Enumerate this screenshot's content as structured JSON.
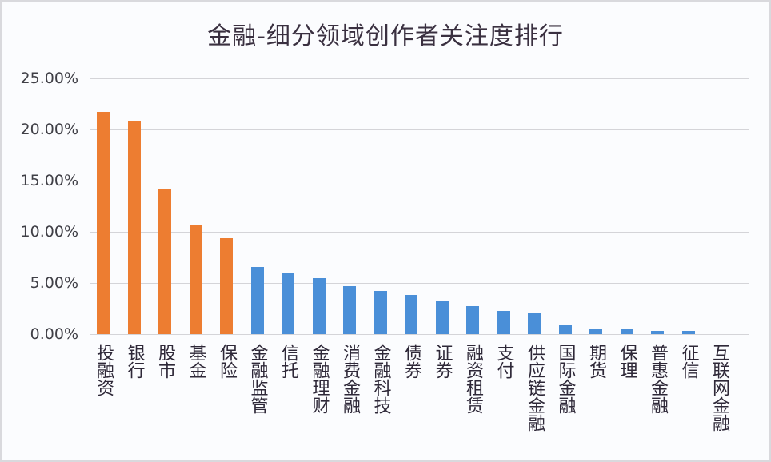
{
  "title": "金融-细分领域创作者关注度排行",
  "colors": {
    "highlight": "#ed7d31",
    "normal": "#4a8fd8",
    "grid": "#d4d4d8"
  },
  "y_axis": {
    "ticks": [
      "0.00%",
      "5.00%",
      "10.00%",
      "15.00%",
      "20.00%",
      "25.00%"
    ]
  },
  "chart_data": {
    "type": "bar",
    "title": "金融-细分领域创作者关注度排行",
    "xlabel": "",
    "ylabel": "",
    "ylim": [
      0,
      25
    ],
    "y_unit": "%",
    "grid": true,
    "legend": null,
    "categories": [
      "投融资",
      "银行",
      "股市",
      "基金",
      "保险",
      "金融监管",
      "信托",
      "金融理财",
      "消费金融",
      "金融科技",
      "债券",
      "证券",
      "融资租赁",
      "支付",
      "供应链金融",
      "国际金融",
      "期货",
      "保理",
      "普惠金融",
      "征信",
      "互联网金融"
    ],
    "values": [
      21.7,
      20.8,
      14.2,
      10.6,
      9.4,
      6.6,
      5.9,
      5.5,
      4.7,
      4.2,
      3.8,
      3.3,
      2.7,
      2.3,
      2.0,
      0.9,
      0.5,
      0.5,
      0.3,
      0.3,
      0.0
    ],
    "highlighted_top_n": 5,
    "bar_colors": [
      "#ed7d31",
      "#ed7d31",
      "#ed7d31",
      "#ed7d31",
      "#ed7d31",
      "#4a8fd8",
      "#4a8fd8",
      "#4a8fd8",
      "#4a8fd8",
      "#4a8fd8",
      "#4a8fd8",
      "#4a8fd8",
      "#4a8fd8",
      "#4a8fd8",
      "#4a8fd8",
      "#4a8fd8",
      "#4a8fd8",
      "#4a8fd8",
      "#4a8fd8",
      "#4a8fd8",
      "#4a8fd8"
    ]
  }
}
